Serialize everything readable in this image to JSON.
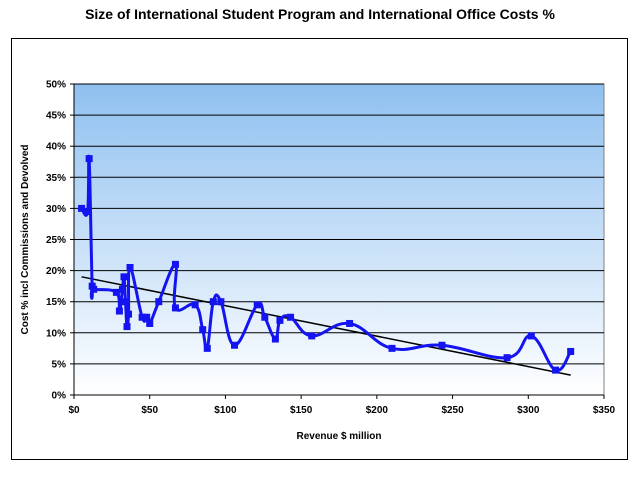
{
  "chart_data": {
    "type": "line",
    "title": "Size of International Student Program and International Office Costs %",
    "xlabel": "Revenue $ million",
    "ylabel": "Cost % incl Commissions and Devolved",
    "xlim": [
      0,
      350
    ],
    "ylim": [
      0,
      50
    ],
    "x_ticks": [
      "$0",
      "$50",
      "$100",
      "$150",
      "$200",
      "$250",
      "$300",
      "$350"
    ],
    "y_ticks": [
      "0%",
      "5%",
      "10%",
      "15%",
      "20%",
      "25%",
      "30%",
      "35%",
      "40%",
      "45%",
      "50%"
    ],
    "grid": true,
    "legend": "none",
    "series": [
      {
        "x": [
          5,
          9,
          10,
          12,
          13,
          28,
          30,
          32,
          33,
          34,
          35,
          36,
          37,
          45,
          48,
          50,
          56,
          67,
          67,
          80,
          85,
          88,
          92,
          97,
          106,
          121,
          126,
          133,
          136,
          143,
          157,
          182,
          210,
          243,
          286,
          302,
          318,
          328
        ],
        "y": [
          30,
          29.5,
          38,
          17.5,
          17,
          16.5,
          13.5,
          17,
          19,
          15,
          11,
          13,
          20.5,
          12.5,
          12.5,
          11.5,
          15,
          21,
          14,
          14.5,
          10.5,
          7.5,
          15,
          15,
          8,
          14.5,
          12.5,
          9,
          12,
          12.5,
          9.5,
          11.5,
          7.5,
          8,
          6,
          9.5,
          4,
          7
        ],
        "color": "#1414f0"
      }
    ],
    "trendline": {
      "x": [
        5,
        328
      ],
      "y": [
        19,
        3.2
      ],
      "color": "#000000"
    }
  },
  "colors": {
    "plot_top": "#8fc0f0",
    "plot_bottom": "#ffffff",
    "series": "#1414f0",
    "grid": "#000000"
  }
}
